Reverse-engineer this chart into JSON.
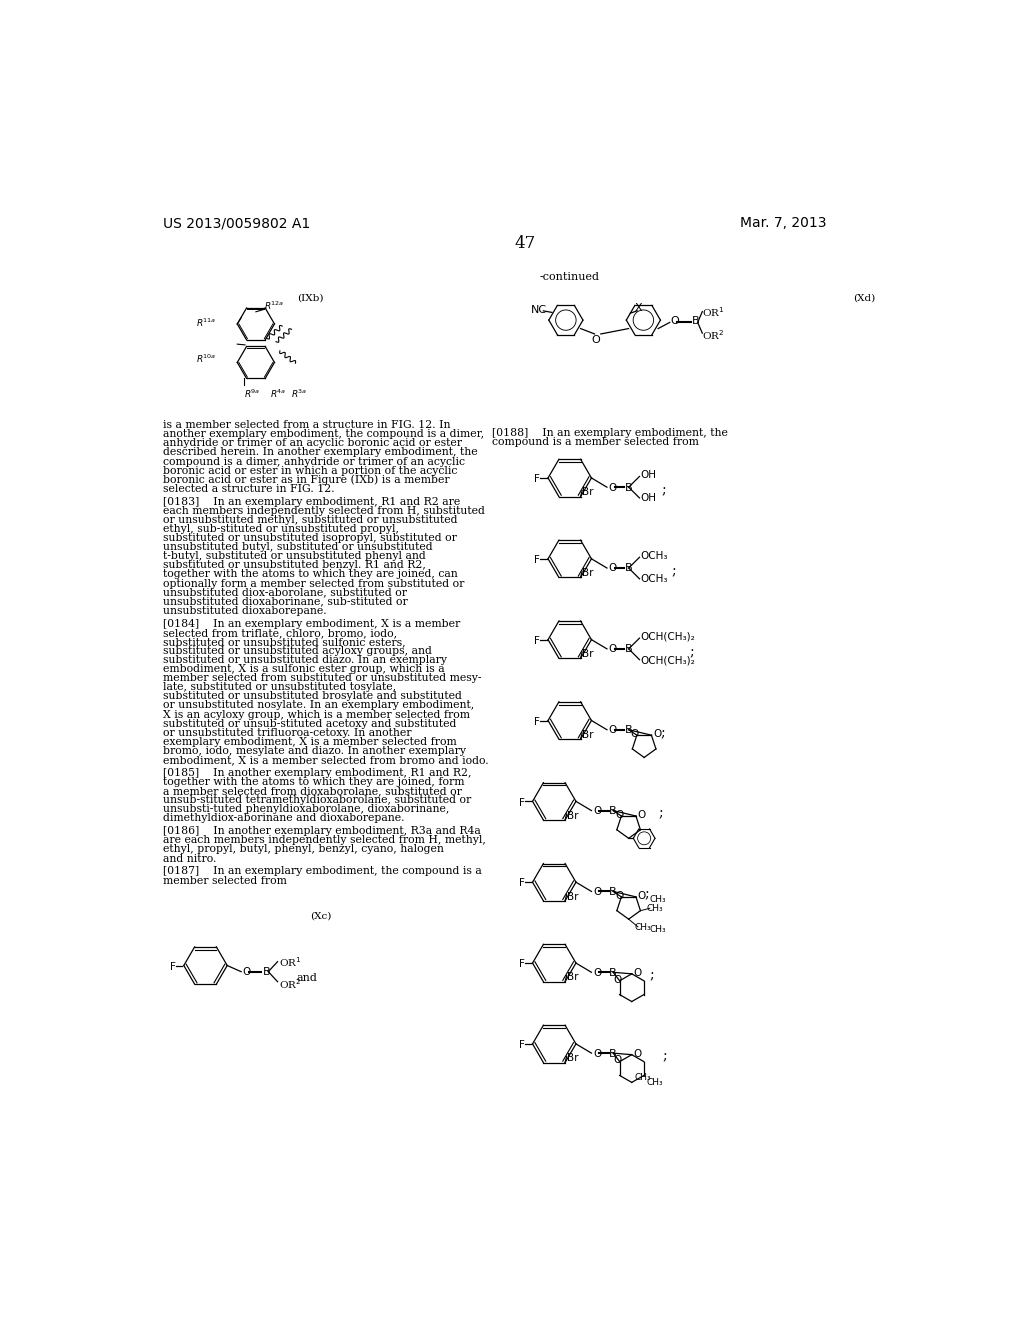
{
  "page_number": "47",
  "patent_number": "US 2013/0059802 A1",
  "date": "Mar. 7, 2013",
  "background_color": "#ffffff",
  "text_color": "#000000"
}
